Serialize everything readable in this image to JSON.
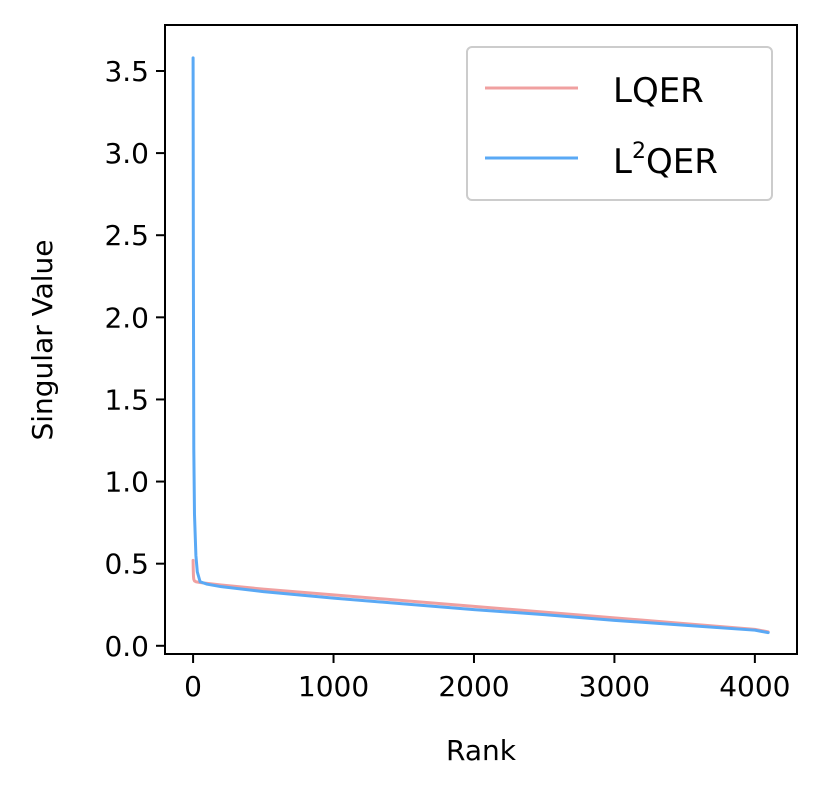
{
  "chart_data": {
    "type": "line",
    "title": "",
    "xlabel": "Rank",
    "ylabel": "Singular Value",
    "xlim": [
      -200,
      4300
    ],
    "ylim": [
      -0.05,
      3.78
    ],
    "xticks": [
      0,
      1000,
      2000,
      3000,
      4000
    ],
    "xtick_labels": [
      "0",
      "1000",
      "2000",
      "3000",
      "4000"
    ],
    "yticks": [
      0.0,
      0.5,
      1.0,
      1.5,
      2.0,
      2.5,
      3.0,
      3.5
    ],
    "ytick_labels": [
      "0.0",
      "0.5",
      "1.0",
      "1.5",
      "2.0",
      "2.5",
      "3.0",
      "3.5"
    ],
    "grid": false,
    "legend_position": "top-right",
    "series": [
      {
        "name": "LQER",
        "color": "#f0a0a0",
        "x": [
          0,
          1,
          2,
          3,
          5,
          10,
          20,
          50,
          100,
          200,
          500,
          1000,
          1500,
          2000,
          2500,
          3000,
          3500,
          4000,
          4095
        ],
        "y": [
          0.52,
          0.47,
          0.44,
          0.42,
          0.405,
          0.395,
          0.39,
          0.385,
          0.38,
          0.37,
          0.345,
          0.31,
          0.275,
          0.24,
          0.205,
          0.17,
          0.135,
          0.1,
          0.085
        ]
      },
      {
        "name": "L²QER",
        "color": "#5aa9f5",
        "x": [
          0,
          2,
          5,
          10,
          20,
          30,
          50,
          100,
          200,
          500,
          1000,
          1500,
          2000,
          2500,
          3000,
          3500,
          4000,
          4095
        ],
        "y": [
          3.58,
          2.3,
          1.2,
          0.8,
          0.55,
          0.45,
          0.39,
          0.375,
          0.36,
          0.33,
          0.29,
          0.255,
          0.22,
          0.19,
          0.155,
          0.125,
          0.095,
          0.08
        ]
      }
    ]
  },
  "legend": {
    "lqer_label": "LQER",
    "l2qer_prefix": "L",
    "l2qer_sup": "2",
    "l2qer_suffix": "QER"
  }
}
